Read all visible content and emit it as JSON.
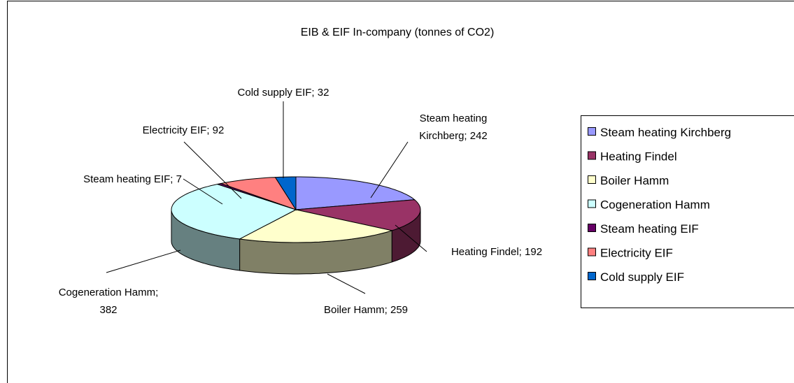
{
  "chart_data": {
    "type": "pie3d",
    "title": "EIB & EIF In-company (tonnes of CO2)",
    "categories": [
      "Steam heating Kirchberg",
      "Heating Findel",
      "Boiler Hamm",
      "Cogeneration Hamm",
      "Steam heating EIF",
      "Electricity EIF",
      "Cold supply EIF"
    ],
    "values": [
      242,
      192,
      259,
      382,
      7,
      92,
      32
    ],
    "value_labels": [
      "Steam heating Kirchberg; 242",
      "Heating Findel; 192",
      "Boiler Hamm; 259",
      "Cogeneration Hamm; 382",
      "Steam heating EIF; 7",
      "Electricity EIF; 92",
      "Cold supply EIF; 32"
    ],
    "colors": [
      "#9999ff",
      "#993366",
      "#ffffcc",
      "#ccffff",
      "#660066",
      "#ff8080",
      "#0066cc"
    ],
    "legend": "right"
  }
}
